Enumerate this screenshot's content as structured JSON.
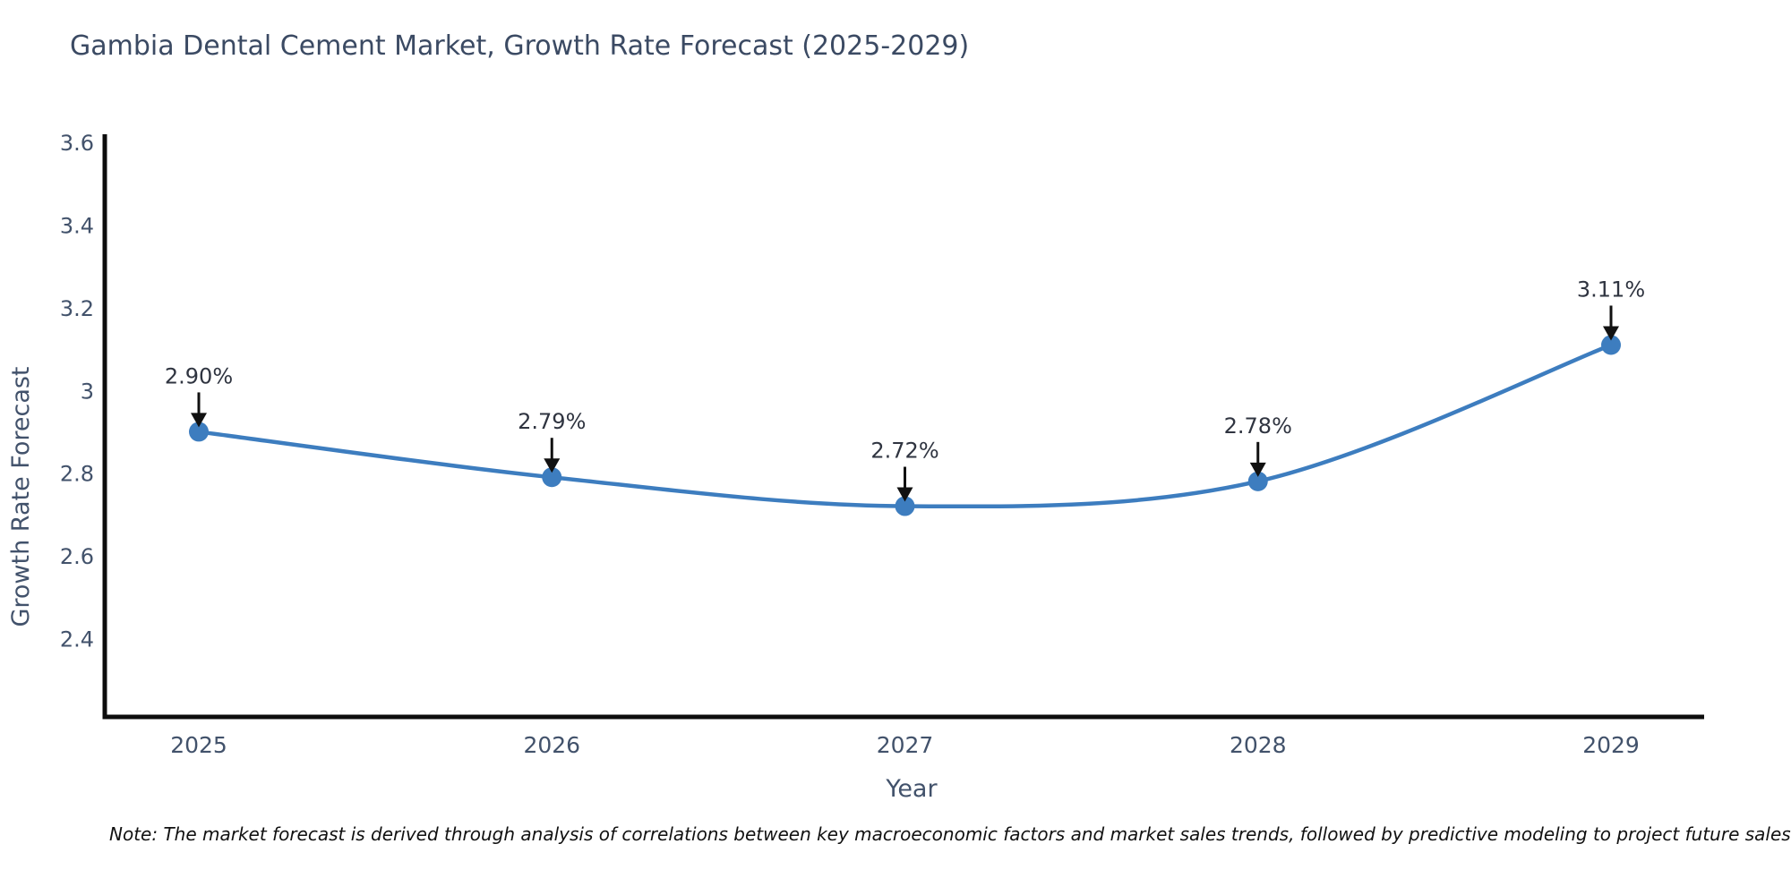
{
  "title": "Gambia Dental Cement Market, Growth Rate Forecast (2025-2029)",
  "note": "Note: The market forecast is derived through analysis of correlations between key macroeconomic factors and market sales trends, followed by predictive modeling to project future sales",
  "chart_data": {
    "type": "line",
    "title": "Gambia Dental Cement Market, Growth Rate Forecast (2025-2029)",
    "x": [
      "2025",
      "2026",
      "2027",
      "2028",
      "2029"
    ],
    "series": [
      {
        "name": "Growth Rate Forecast",
        "values": [
          2.9,
          2.79,
          2.72,
          2.78,
          3.11
        ],
        "point_labels": [
          "2.90%",
          "2.79%",
          "2.72%",
          "2.78%",
          "3.11%"
        ]
      }
    ],
    "xlabel": "Year",
    "ylabel": "Growth Rate Forecast",
    "ytick_labels": [
      "2.4",
      "2.6",
      "2.8",
      "3",
      "3.2",
      "3.4",
      "3.6"
    ],
    "yticks": [
      2.4,
      2.6,
      2.8,
      3.0,
      3.2,
      3.4,
      3.6
    ],
    "ylim": [
      2.21,
      3.62
    ],
    "grid": false,
    "legend": "none",
    "smooth": true,
    "colors": {
      "line": "#3d7dbf",
      "marker": "#3d7dbf",
      "axis": "#0d0d0d",
      "tick_label": "#42526b",
      "axis_label": "#42526b",
      "annotation_text": "#2f3440",
      "annotation_arrow": "#111111",
      "title": "#3b4a63"
    }
  }
}
